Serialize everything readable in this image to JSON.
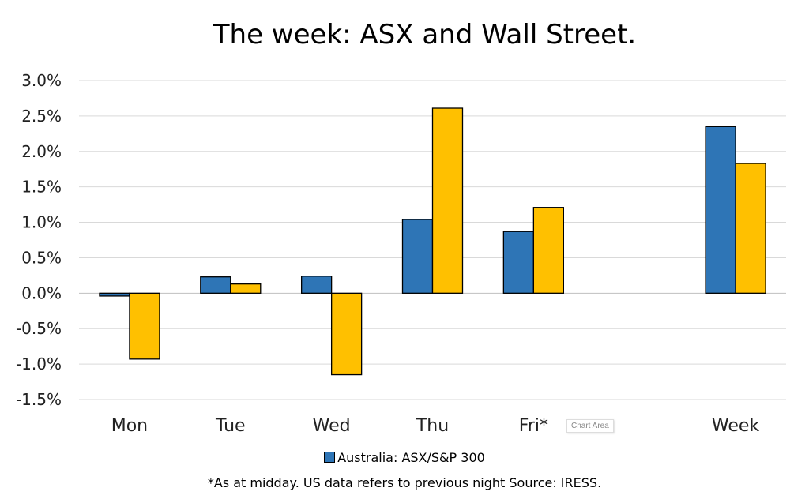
{
  "chart_data": {
    "type": "bar",
    "title": "The week:  ASX and Wall Street.",
    "categories": [
      "Mon",
      "Tue",
      "Wed",
      "Thu",
      "Fri*",
      "",
      "Week"
    ],
    "series": [
      {
        "name": "Australia: ASX/S&P 300",
        "color": "#2E75B6",
        "values": [
          -0.04,
          0.23,
          0.24,
          1.04,
          0.87,
          null,
          2.35
        ]
      },
      {
        "color": "#FFC000",
        "values": [
          -0.93,
          0.13,
          -1.15,
          2.61,
          1.21,
          null,
          1.83
        ]
      }
    ],
    "ylim": [
      -1.5,
      3.0
    ],
    "yticks": [
      "3.0%",
      "2.5%",
      "2.0%",
      "1.5%",
      "1.0%",
      "0.5%",
      "0.0%",
      "-0.5%",
      "-1.0%",
      "-1.5%"
    ],
    "ytick_values": [
      3.0,
      2.5,
      2.0,
      1.5,
      1.0,
      0.5,
      0.0,
      -0.5,
      -1.0,
      -1.5
    ],
    "grid": true,
    "legend": "bottom"
  },
  "legend_label": "Australia: ASX/S&P 300",
  "footnote": "*As at midday. US data refers to previous night  Source:  IRESS.",
  "tooltip": "Chart Area"
}
